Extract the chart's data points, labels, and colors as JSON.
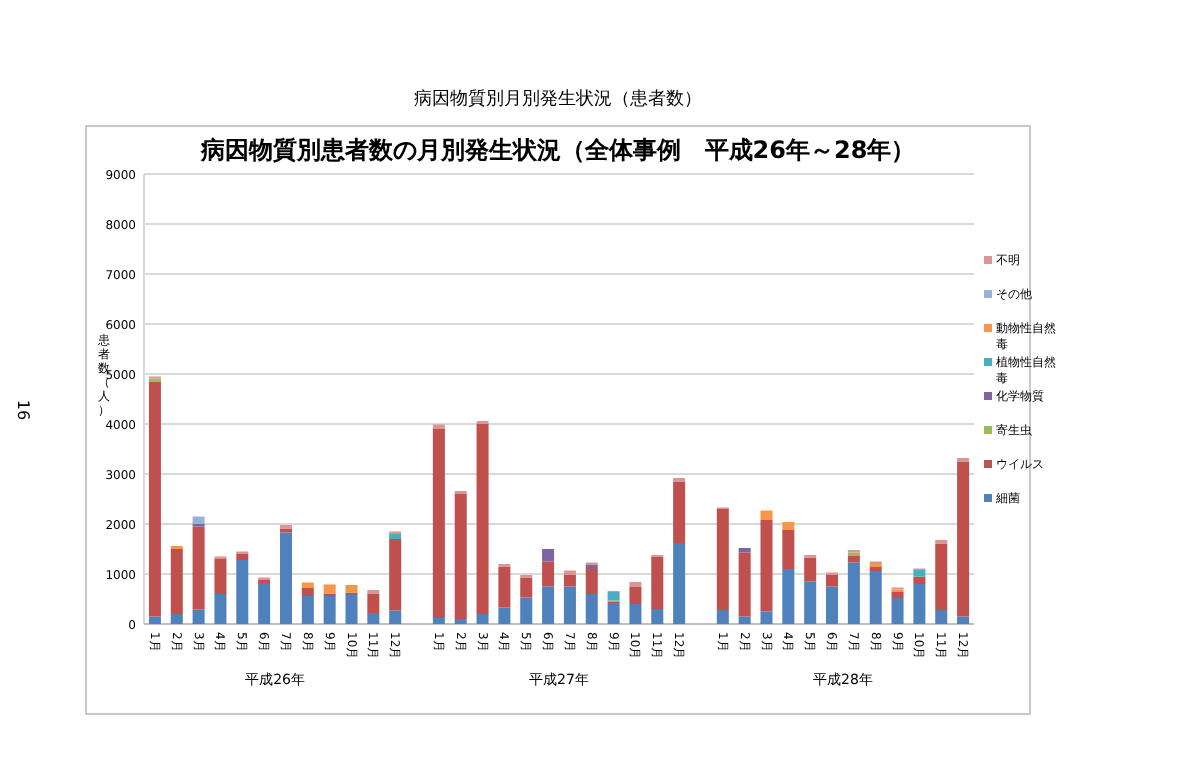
{
  "chart_data": {
    "type": "bar",
    "stacked": true,
    "title": "病因物質別月別発生状況（患者数）",
    "subtitle": "病因物質別患者数の月別発生状況（全体事例　平成26年～28年）",
    "ylabel": "患者数（人）",
    "categories": [
      "1月",
      "2月",
      "3月",
      "4月",
      "5月",
      "6月",
      "7月",
      "8月",
      "9月",
      "10月",
      "11月",
      "12月",
      null,
      "1月",
      "2月",
      "3月",
      "4月",
      "5月",
      "6月",
      "7月",
      "8月",
      "9月",
      "10月",
      "11月",
      "12月",
      null,
      "1月",
      "2月",
      "3月",
      "4月",
      "5月",
      "6月",
      "7月",
      "8月",
      "9月",
      "10月",
      "11月",
      "12月"
    ],
    "series": [
      {
        "name": "細菌",
        "color": "#4f81bd",
        "values": [
          150,
          200,
          290,
          600,
          1280,
          820,
          1830,
          560,
          560,
          600,
          220,
          270,
          null,
          120,
          100,
          200,
          330,
          530,
          750,
          750,
          600,
          420,
          400,
          300,
          1620,
          null,
          280,
          150,
          250,
          1100,
          850,
          750,
          1230,
          1060,
          520,
          800,
          280,
          150
        ]
      },
      {
        "name": "ウイルス",
        "color": "#c0504d",
        "values": [
          4700,
          1300,
          1660,
          700,
          120,
          60,
          80,
          160,
          50,
          30,
          380,
          1430,
          null,
          3780,
          2500,
          3800,
          820,
          390,
          500,
          230,
          500,
          20,
          340,
          1050,
          1230,
          null,
          2020,
          1280,
          1830,
          780,
          480,
          230,
          130,
          80,
          120,
          150,
          1330,
          3100
        ]
      },
      {
        "name": "寄生虫",
        "color": "#9bbb59",
        "values": [
          60,
          0,
          0,
          0,
          0,
          0,
          0,
          0,
          0,
          0,
          0,
          0,
          null,
          0,
          0,
          0,
          0,
          0,
          0,
          0,
          0,
          30,
          0,
          0,
          0,
          null,
          0,
          0,
          0,
          0,
          0,
          0,
          70,
          0,
          0,
          0,
          0,
          0
        ]
      },
      {
        "name": "化学物質",
        "color": "#8064a2",
        "values": [
          0,
          0,
          50,
          0,
          0,
          0,
          0,
          0,
          0,
          0,
          0,
          0,
          null,
          0,
          0,
          0,
          0,
          0,
          250,
          0,
          80,
          0,
          0,
          0,
          0,
          null,
          0,
          90,
          0,
          0,
          0,
          0,
          0,
          0,
          0,
          0,
          0,
          0
        ]
      },
      {
        "name": "植物性自然毒",
        "color": "#4bacc6",
        "values": [
          0,
          0,
          0,
          0,
          0,
          0,
          0,
          0,
          0,
          0,
          0,
          100,
          null,
          0,
          0,
          0,
          0,
          0,
          0,
          0,
          0,
          170,
          0,
          0,
          0,
          null,
          0,
          0,
          0,
          0,
          0,
          0,
          0,
          0,
          0,
          130,
          0,
          0
        ]
      },
      {
        "name": "動物性自然毒",
        "color": "#f79646",
        "values": [
          0,
          60,
          0,
          0,
          0,
          0,
          0,
          110,
          180,
          150,
          0,
          0,
          null,
          0,
          0,
          0,
          0,
          0,
          0,
          0,
          0,
          0,
          0,
          0,
          0,
          null,
          0,
          0,
          190,
          160,
          0,
          0,
          0,
          60,
          50,
          0,
          0,
          0
        ]
      },
      {
        "name": "その他",
        "color": "#95b3d7",
        "values": [
          0,
          0,
          150,
          0,
          0,
          0,
          0,
          0,
          0,
          0,
          0,
          0,
          null,
          0,
          0,
          0,
          0,
          0,
          0,
          0,
          0,
          0,
          0,
          0,
          0,
          null,
          0,
          0,
          0,
          0,
          0,
          0,
          0,
          0,
          0,
          0,
          0,
          0
        ]
      },
      {
        "name": "不明",
        "color": "#d99694",
        "values": [
          40,
          0,
          0,
          50,
          50,
          50,
          70,
          0,
          0,
          0,
          80,
          50,
          null,
          90,
          60,
          60,
          50,
          60,
          0,
          90,
          50,
          20,
          100,
          30,
          70,
          null,
          30,
          0,
          0,
          0,
          50,
          50,
          50,
          50,
          40,
          30,
          70,
          70
        ]
      }
    ],
    "ylim": [
      0,
      9000
    ],
    "yticks": [
      0,
      1000,
      2000,
      3000,
      4000,
      5000,
      6000,
      7000,
      8000,
      9000
    ],
    "grid": "y",
    "legend": "right",
    "annotations": [
      "16",
      "平成26年",
      "平成27年",
      "平成28年"
    ]
  }
}
